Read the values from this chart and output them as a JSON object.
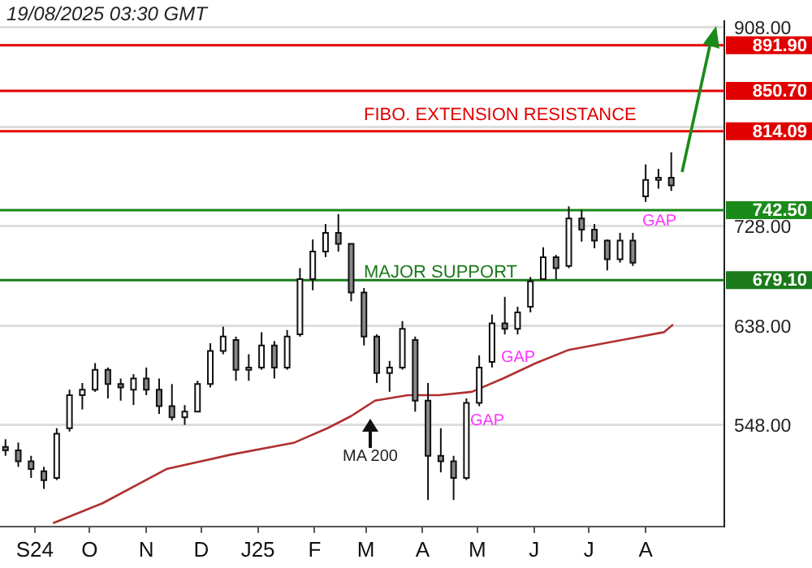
{
  "chart_data": {
    "type": "candlestick",
    "x": [
      "2024-08-16",
      "2024-08-23",
      "2024-08-30",
      "2024-09-06",
      "2024-09-13",
      "2024-09-20",
      "2024-09-27",
      "2024-10-04",
      "2024-10-11",
      "2024-10-18",
      "2024-10-25",
      "2024-11-01",
      "2024-11-08",
      "2024-11-15",
      "2024-11-22",
      "2024-11-29",
      "2024-12-06",
      "2024-12-13",
      "2024-12-20",
      "2024-12-27",
      "2025-01-03",
      "2025-01-10",
      "2025-01-17",
      "2025-01-24",
      "2025-01-31",
      "2025-02-07",
      "2025-02-14",
      "2025-02-21",
      "2025-02-28",
      "2025-03-07",
      "2025-03-14",
      "2025-03-21",
      "2025-03-28",
      "2025-04-04",
      "2025-04-11",
      "2025-04-18",
      "2025-04-25",
      "2025-05-02",
      "2025-05-09",
      "2025-05-16",
      "2025-05-23",
      "2025-05-30",
      "2025-06-06",
      "2025-06-13",
      "2025-06-20",
      "2025-06-27",
      "2025-07-04",
      "2025-07-11",
      "2025-07-18",
      "2025-07-25",
      "2025-08-01",
      "2025-08-08",
      "2025-08-15"
    ],
    "ohlc": [
      [
        528,
        535,
        520,
        525
      ],
      [
        525,
        532,
        510,
        515
      ],
      [
        515,
        520,
        500,
        508
      ],
      [
        506,
        510,
        490,
        498
      ],
      [
        500,
        545,
        498,
        540
      ],
      [
        545,
        580,
        542,
        575
      ],
      [
        575,
        586,
        562,
        580
      ],
      [
        580,
        604,
        578,
        598
      ],
      [
        598,
        600,
        572,
        585
      ],
      [
        585,
        590,
        570,
        582
      ],
      [
        580,
        594,
        566,
        590
      ],
      [
        590,
        600,
        575,
        580
      ],
      [
        580,
        590,
        558,
        565
      ],
      [
        565,
        585,
        552,
        555
      ],
      [
        555,
        566,
        548,
        560
      ],
      [
        560,
        588,
        560,
        585
      ],
      [
        585,
        622,
        582,
        615
      ],
      [
        615,
        637,
        612,
        628
      ],
      [
        625,
        628,
        588,
        598
      ],
      [
        598,
        612,
        588,
        600
      ],
      [
        600,
        632,
        598,
        620
      ],
      [
        620,
        624,
        590,
        600
      ],
      [
        600,
        634,
        598,
        628
      ],
      [
        630,
        690,
        628,
        680
      ],
      [
        680,
        716,
        670,
        705
      ],
      [
        705,
        730,
        700,
        722
      ],
      [
        722,
        739,
        705,
        712
      ],
      [
        712,
        712,
        660,
        668
      ],
      [
        668,
        672,
        620,
        628
      ],
      [
        628,
        630,
        586,
        595
      ],
      [
        595,
        606,
        578,
        600
      ],
      [
        600,
        642,
        598,
        635
      ],
      [
        625,
        628,
        560,
        570
      ],
      [
        570,
        586,
        480,
        520
      ],
      [
        520,
        545,
        505,
        515
      ],
      [
        515,
        520,
        480,
        500
      ],
      [
        500,
        572,
        498,
        568
      ],
      [
        568,
        611,
        565,
        600
      ],
      [
        605,
        648,
        600,
        640
      ],
      [
        640,
        664,
        630,
        635
      ],
      [
        635,
        655,
        630,
        650
      ],
      [
        655,
        682,
        650,
        678
      ],
      [
        680,
        709,
        680,
        700
      ],
      [
        700,
        702,
        680,
        690
      ],
      [
        692,
        746,
        690,
        735
      ],
      [
        735,
        743,
        714,
        725
      ],
      [
        725,
        730,
        708,
        715
      ],
      [
        715,
        716,
        688,
        698
      ],
      [
        698,
        722,
        695,
        715
      ],
      [
        715,
        722,
        692,
        695
      ],
      [
        755,
        784,
        750,
        770
      ],
      [
        770,
        780,
        762,
        772
      ],
      [
        772,
        795,
        760,
        765
      ]
    ],
    "series": [
      {
        "type": "line",
        "color": "#b03030",
        "x": [
          "2024-09-11",
          "2024-10-08",
          "2024-11-12",
          "2024-12-17",
          "2025-01-21",
          "2025-02-08",
          "2025-02-21",
          "2025-03-06",
          "2025-03-24",
          "2025-04-10",
          "2025-04-28",
          "2025-05-15",
          "2025-06-02",
          "2025-06-20",
          "2025-07-16",
          "2025-08-11",
          "2025-08-16"
        ],
        "values": [
          459,
          477,
          508,
          521,
          532,
          545,
          556,
          570,
          575,
          575,
          578,
          590,
          604,
          616,
          624,
          632,
          639
        ]
      }
    ],
    "xlim": [
      "2024-08-13",
      "2025-09-13"
    ],
    "xticks": [
      {
        "value": "2024-09-01",
        "label": "S24"
      },
      {
        "value": "2024-10-01",
        "label": "O"
      },
      {
        "value": "2024-11-01",
        "label": "N"
      },
      {
        "value": "2024-12-01",
        "label": "D"
      },
      {
        "value": "2025-01-01",
        "label": "J25"
      },
      {
        "value": "2025-02-01",
        "label": "F"
      },
      {
        "value": "2025-03-01",
        "label": "M"
      },
      {
        "value": "2025-04-01",
        "label": "A"
      },
      {
        "value": "2025-05-01",
        "label": "M"
      },
      {
        "value": "2025-06-01",
        "label": "J"
      },
      {
        "value": "2025-07-01",
        "label": "J"
      },
      {
        "value": "2025-08-01",
        "label": "A"
      }
    ],
    "ylim": [
      456,
      914
    ],
    "yticks": [
      {
        "value": 548,
        "label": "548.00"
      },
      {
        "value": 638,
        "label": "638.00"
      },
      {
        "value": 728,
        "label": "728.00"
      },
      {
        "value": 818,
        "label": null
      },
      {
        "value": 908,
        "label": "908.00"
      }
    ],
    "grid": "y",
    "ref_lines": [
      {
        "axis": "y",
        "value": 891.9,
        "label": "891.90",
        "color": "#e00000"
      },
      {
        "axis": "y",
        "value": 850.7,
        "label": "850.70",
        "color": "#e00000"
      },
      {
        "axis": "y",
        "value": 814.09,
        "label": "814.09",
        "color": "#e00000"
      },
      {
        "axis": "y",
        "value": 742.5,
        "label": "742.50",
        "color": "#1a8a1a"
      },
      {
        "axis": "y",
        "value": 679.1,
        "label": "679.10",
        "color": "#1a7a1a"
      }
    ],
    "annotations": [
      "19/08/2025 03:30 GMT",
      "FIBO. EXTENSION RESISTANCE",
      "MAJOR SUPPORT",
      "GAP",
      "GAP",
      "GAP",
      "MA 200"
    ]
  }
}
